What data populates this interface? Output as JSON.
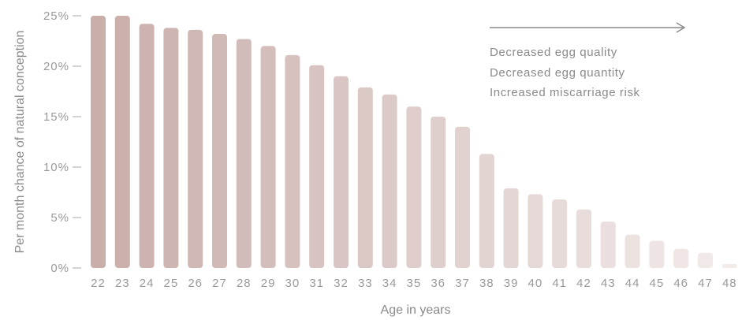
{
  "chart_data": {
    "type": "bar",
    "title": "",
    "xlabel": "Age in years",
    "ylabel": "Per month chance of natural conception",
    "categories": [
      "22",
      "23",
      "24",
      "25",
      "26",
      "27",
      "28",
      "29",
      "30",
      "31",
      "32",
      "33",
      "34",
      "35",
      "36",
      "37",
      "38",
      "39",
      "40",
      "41",
      "42",
      "43",
      "44",
      "45",
      "46",
      "47",
      "48"
    ],
    "values": [
      25,
      25,
      24.2,
      23.8,
      23.6,
      23.2,
      22.7,
      22,
      21.1,
      20.1,
      19,
      17.9,
      17.2,
      16,
      15,
      14,
      11.3,
      7.9,
      7.3,
      6.8,
      5.8,
      4.6,
      3.3,
      2.7,
      1.9,
      1.5,
      0.4
    ],
    "ylim": [
      0,
      25
    ],
    "yticks": [
      {
        "value": 25,
        "label": "25%"
      },
      {
        "value": 20,
        "label": "20%"
      },
      {
        "value": 15,
        "label": "15%"
      },
      {
        "value": 10,
        "label": "10%"
      },
      {
        "value": 5,
        "label": "5%"
      },
      {
        "value": 0,
        "label": "0%"
      }
    ],
    "grid": false,
    "bar_color_start": "#c9aeaa",
    "bar_color_end": "#f2ebea",
    "annotations": {
      "arrow": "right",
      "lines": [
        "Decreased egg quality",
        "Decreased egg quantity",
        "Increased miscarriage risk"
      ]
    }
  }
}
